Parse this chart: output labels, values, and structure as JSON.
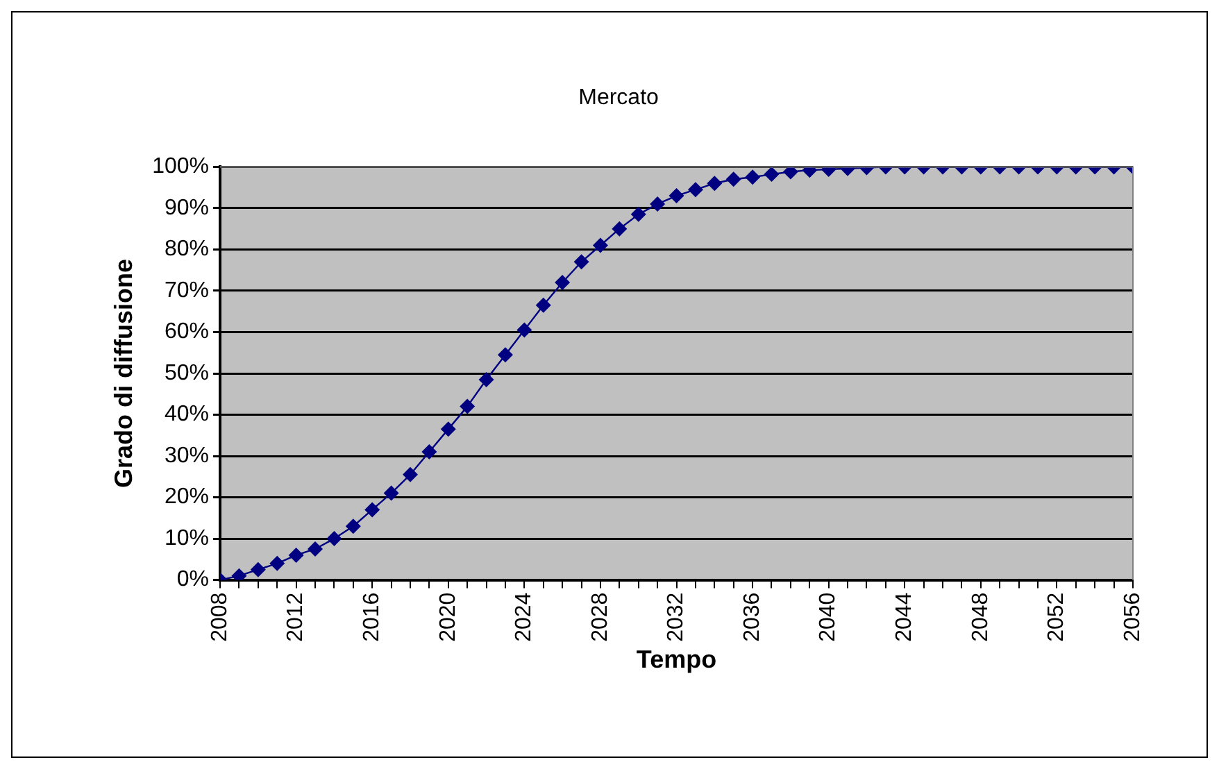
{
  "chart_data": {
    "type": "line",
    "title": "Mercato",
    "xlabel": "Tempo",
    "ylabel": "Grado di diffusione",
    "x": [
      2008,
      2009,
      2010,
      2011,
      2012,
      2013,
      2014,
      2015,
      2016,
      2017,
      2018,
      2019,
      2020,
      2021,
      2022,
      2023,
      2024,
      2025,
      2026,
      2027,
      2028,
      2029,
      2030,
      2031,
      2032,
      2033,
      2034,
      2035,
      2036,
      2037,
      2038,
      2039,
      2040,
      2041,
      2042,
      2043,
      2044,
      2045,
      2046,
      2047,
      2048,
      2049,
      2050,
      2051,
      2052,
      2053,
      2054,
      2055,
      2056
    ],
    "series": [
      {
        "color": "#000080",
        "values": [
          0,
          1,
          2.5,
          4,
          6,
          7.5,
          10,
          13,
          17,
          21,
          25.5,
          31,
          36.5,
          42,
          48.5,
          54.5,
          60.5,
          66.5,
          72,
          77,
          81,
          85,
          88.5,
          91,
          93,
          94.5,
          96,
          97,
          97.5,
          98.2,
          98.8,
          99.2,
          99.4,
          99.6,
          99.8,
          100,
          100,
          100,
          100,
          100,
          100,
          100,
          100,
          100,
          100,
          100,
          100,
          100,
          100
        ]
      }
    ],
    "xlim": [
      2008,
      2056
    ],
    "xticks": [
      2008,
      {
        "value": 2009,
        "label": null
      },
      {
        "value": 2010,
        "label": null
      },
      {
        "value": 2011,
        "label": null
      },
      2012,
      {
        "value": 2013,
        "label": null
      },
      {
        "value": 2014,
        "label": null
      },
      {
        "value": 2015,
        "label": null
      },
      2016,
      {
        "value": 2017,
        "label": null
      },
      {
        "value": 2018,
        "label": null
      },
      {
        "value": 2019,
        "label": null
      },
      2020,
      {
        "value": 2021,
        "label": null
      },
      {
        "value": 2022,
        "label": null
      },
      {
        "value": 2023,
        "label": null
      },
      2024,
      {
        "value": 2025,
        "label": null
      },
      {
        "value": 2026,
        "label": null
      },
      {
        "value": 2027,
        "label": null
      },
      2028,
      {
        "value": 2029,
        "label": null
      },
      {
        "value": 2030,
        "label": null
      },
      {
        "value": 2031,
        "label": null
      },
      2032,
      {
        "value": 2033,
        "label": null
      },
      {
        "value": 2034,
        "label": null
      },
      {
        "value": 2035,
        "label": null
      },
      2036,
      {
        "value": 2037,
        "label": null
      },
      {
        "value": 2038,
        "label": null
      },
      {
        "value": 2039,
        "label": null
      },
      2040,
      {
        "value": 2041,
        "label": null
      },
      {
        "value": 2042,
        "label": null
      },
      {
        "value": 2043,
        "label": null
      },
      2044,
      {
        "value": 2045,
        "label": null
      },
      {
        "value": 2046,
        "label": null
      },
      {
        "value": 2047,
        "label": null
      },
      2048,
      {
        "value": 2049,
        "label": null
      },
      {
        "value": 2050,
        "label": null
      },
      {
        "value": 2051,
        "label": null
      },
      2052,
      {
        "value": 2053,
        "label": null
      },
      {
        "value": 2054,
        "label": null
      },
      {
        "value": 2055,
        "label": null
      },
      2056
    ],
    "ylim": [
      0,
      100
    ],
    "yticks": [
      {
        "value": 0,
        "label": "0%"
      },
      {
        "value": 10,
        "label": "10%"
      },
      {
        "value": 20,
        "label": "20%"
      },
      {
        "value": 30,
        "label": "30%"
      },
      {
        "value": 40,
        "label": "40%"
      },
      {
        "value": 50,
        "label": "50%"
      },
      {
        "value": 60,
        "label": "60%"
      },
      {
        "value": 70,
        "label": "70%"
      },
      {
        "value": 80,
        "label": "80%"
      },
      {
        "value": 90,
        "label": "90%"
      },
      {
        "value": 100,
        "label": "100%"
      }
    ],
    "grid": "y",
    "legend": false,
    "marker": "diamond",
    "line_style": "solid"
  }
}
